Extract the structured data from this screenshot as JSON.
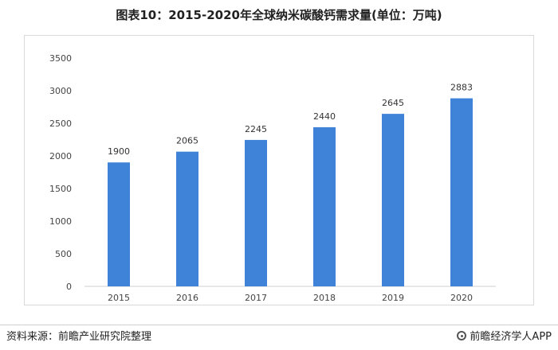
{
  "header": {
    "title": "图表10：2015-2020年全球纳米碳酸钙需求量(单位：万吨)"
  },
  "footer": {
    "source": "资料来源：前瞻产业研究院整理",
    "brand": "前瞻经济学人APP"
  },
  "chart_data": {
    "type": "bar",
    "title": "图表10：2015-2020年全球纳米碳酸钙需求量(单位：万吨)",
    "categories": [
      "2015",
      "2016",
      "2017",
      "2018",
      "2019",
      "2020"
    ],
    "values": [
      1900,
      2065,
      2245,
      2440,
      2645,
      2883
    ],
    "ylim": [
      0,
      3500
    ],
    "yticks": [
      0,
      500,
      1000,
      1500,
      2000,
      2500,
      3000,
      3500
    ],
    "grid": false,
    "data_labels": true,
    "colors": {
      "bar": "#3f83d9"
    }
  }
}
